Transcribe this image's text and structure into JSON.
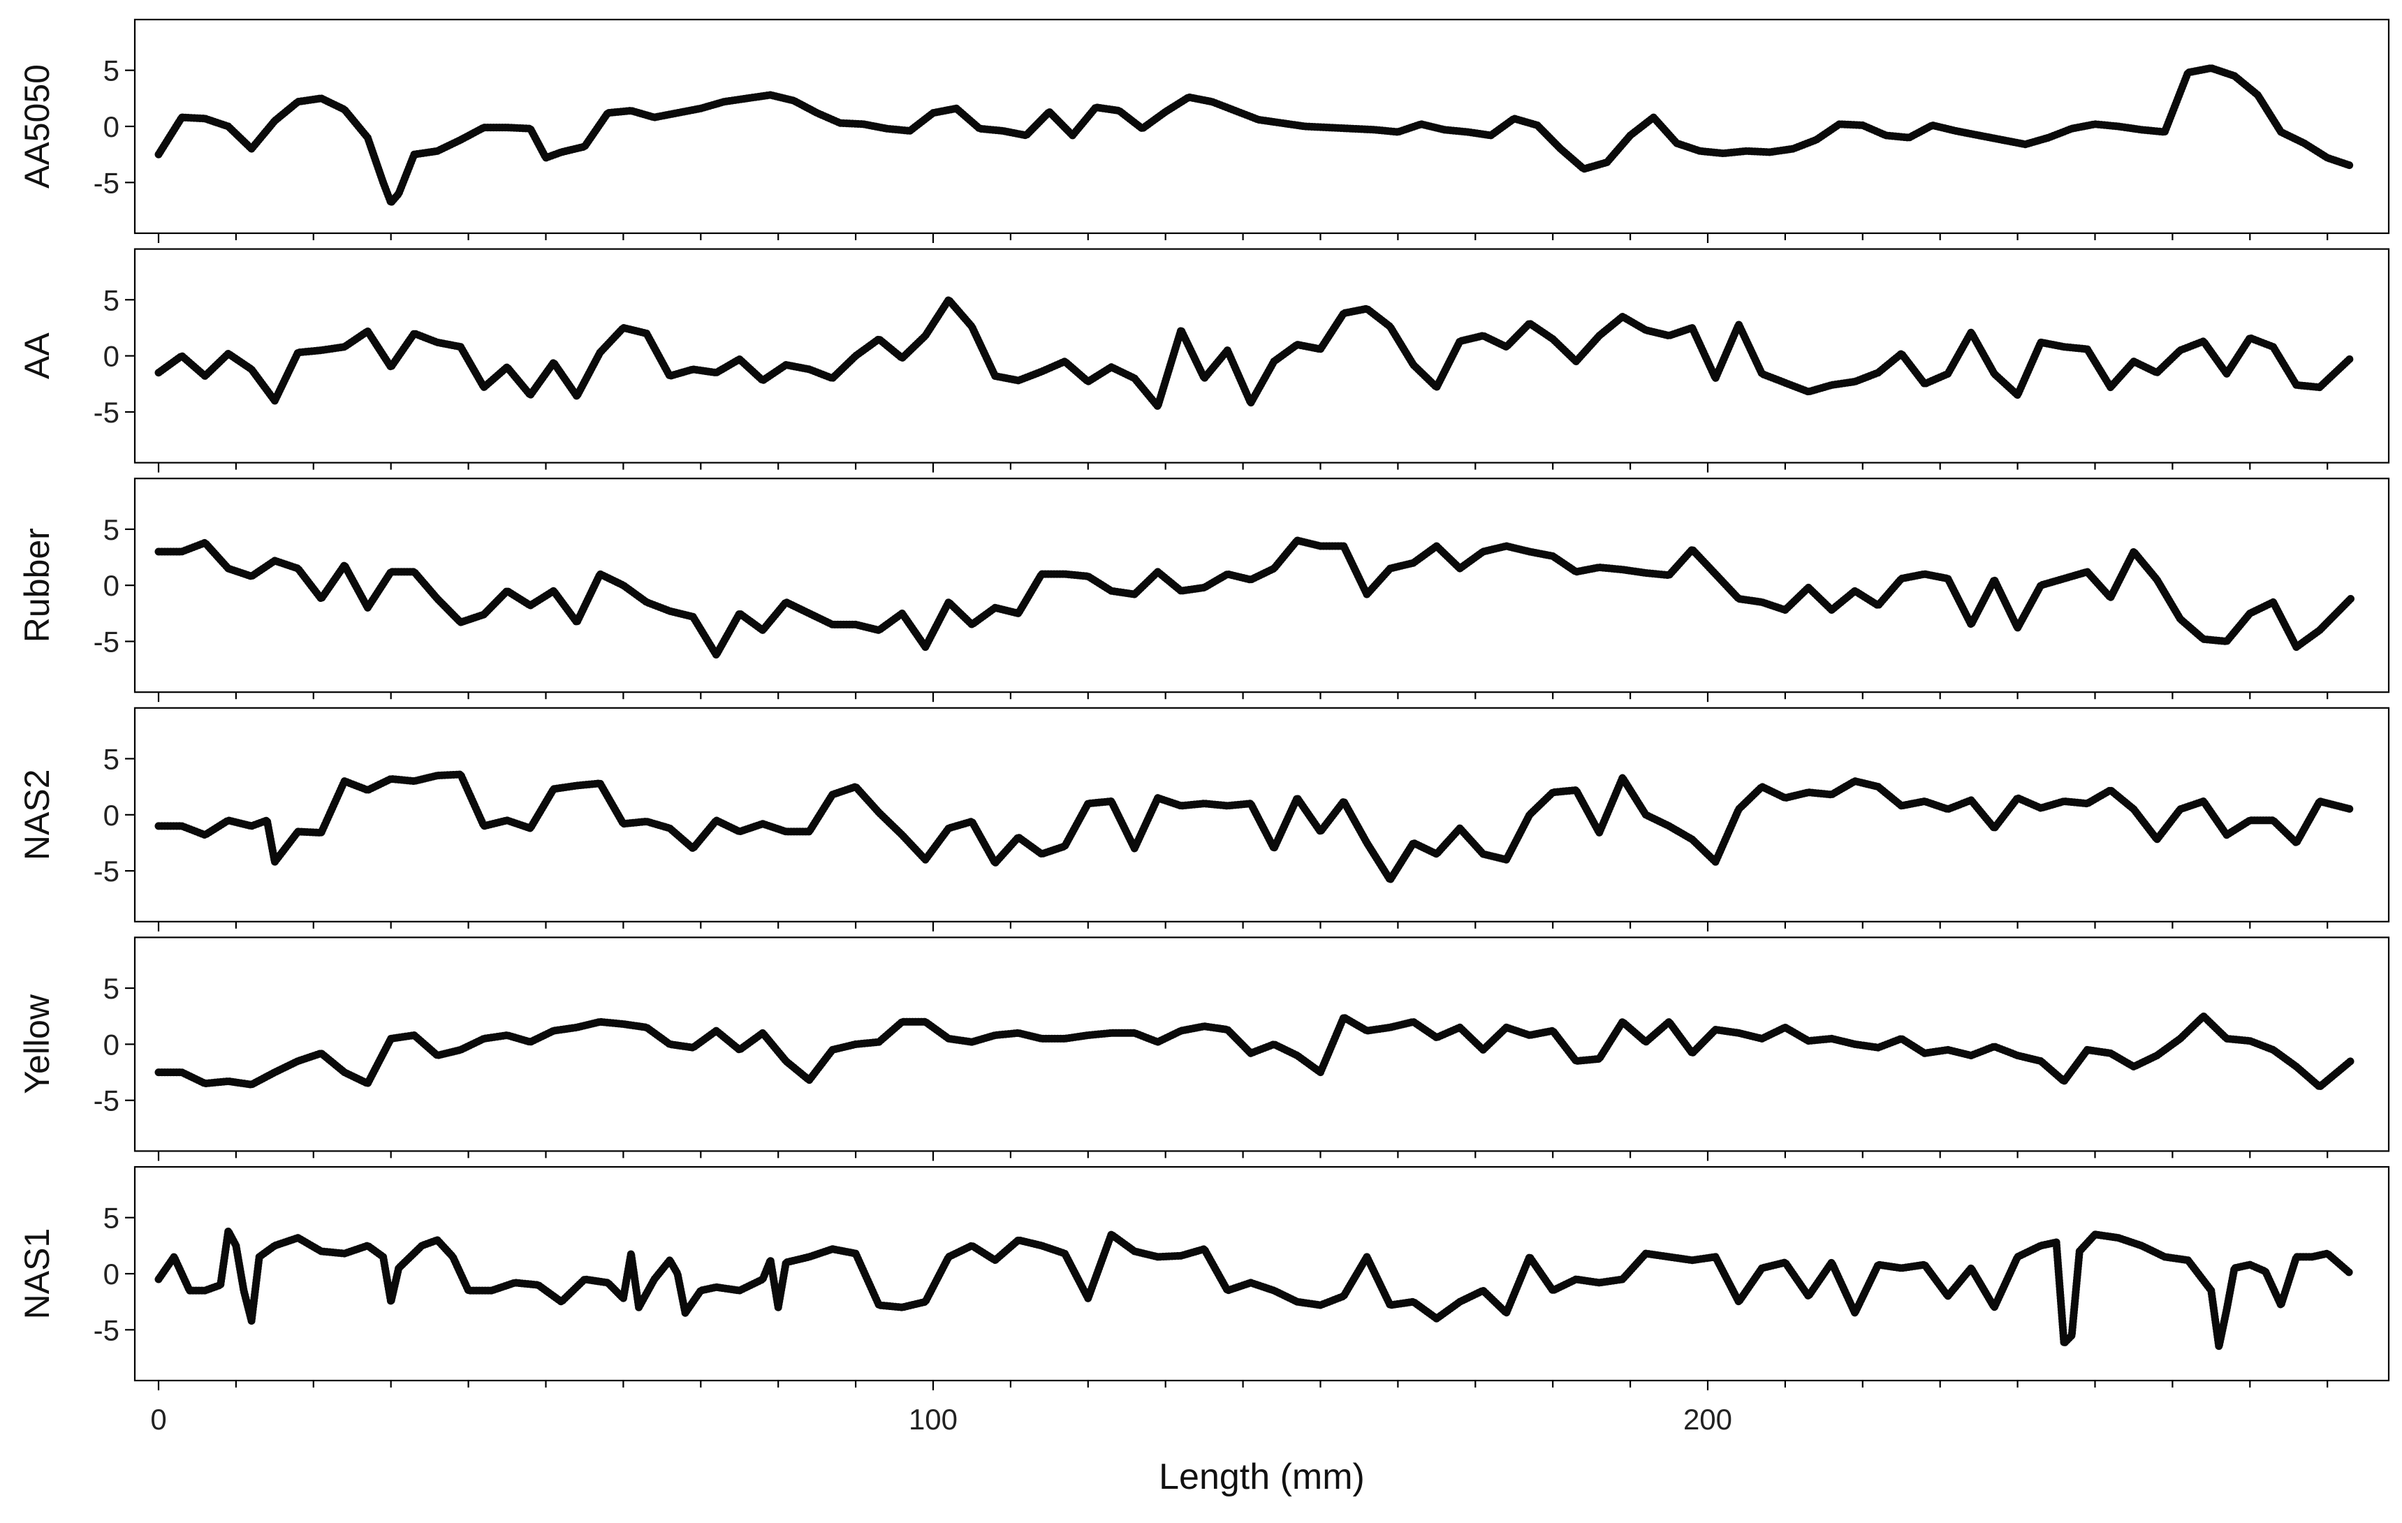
{
  "chart_data": {
    "type": "line",
    "xlabel": "Length (mm)",
    "xlim": [
      0,
      284
    ],
    "xticks_major": [
      0,
      100,
      200
    ],
    "xticks_minor_step": 10,
    "ylim": [
      -8,
      8
    ],
    "yticks": [
      -5,
      0,
      5
    ],
    "grid": false,
    "series": [
      {
        "name": "AA5050",
        "x": [
          0,
          3,
          6,
          9,
          12,
          15,
          18,
          21,
          24,
          27,
          29,
          30,
          31,
          33,
          36,
          39,
          42,
          45,
          48,
          50,
          52,
          55,
          58,
          61,
          64,
          67,
          70,
          73,
          76,
          79,
          82,
          85,
          88,
          91,
          94,
          97,
          100,
          103,
          106,
          109,
          112,
          115,
          118,
          121,
          124,
          127,
          130,
          133,
          136,
          139,
          142,
          145,
          148,
          151,
          154,
          157,
          160,
          163,
          166,
          169,
          172,
          175,
          178,
          181,
          184,
          187,
          190,
          193,
          196,
          199,
          202,
          205,
          208,
          211,
          214,
          217,
          220,
          223,
          226,
          229,
          232,
          235,
          238,
          241,
          244,
          247,
          250,
          253,
          256,
          259,
          262,
          265,
          268,
          271,
          274,
          277,
          280,
          283
        ],
        "y": [
          -2.5,
          0.8,
          0.7,
          0,
          -2,
          0.5,
          2.2,
          2.5,
          1.5,
          -1,
          -5,
          -6.8,
          -6,
          -2.5,
          -2.2,
          -1.2,
          -0.1,
          -0.1,
          -0.2,
          -2.8,
          -2.3,
          -1.8,
          1.2,
          1.4,
          0.8,
          1.2,
          1.6,
          2.2,
          2.5,
          2.8,
          2.3,
          1.2,
          0.3,
          0.2,
          -0.2,
          -0.4,
          1.2,
          1.6,
          -0.2,
          -0.4,
          -0.8,
          1.3,
          -0.8,
          1.7,
          1.4,
          -0.2,
          1.3,
          2.6,
          2.2,
          1.4,
          0.6,
          0.3,
          0.0,
          -0.1,
          -0.2,
          -0.3,
          -0.5,
          0.2,
          -0.3,
          -0.5,
          -0.8,
          0.7,
          0.1,
          -2,
          -3.8,
          -3.2,
          -0.8,
          0.8,
          -1.5,
          -2.2,
          -2.4,
          -2.2,
          -2.3,
          -2.0,
          -1.2,
          0.2,
          0.1,
          -0.8,
          -1,
          0.1,
          -0.4,
          -0.8,
          -1.2,
          -1.6,
          -1,
          -0.2,
          0.2,
          0,
          -0.3,
          -0.5,
          4.8,
          5.2,
          4.5,
          2.8,
          -0.5,
          -1.5,
          -2.8,
          -3.5
        ]
      },
      {
        "name": "AA",
        "x": [
          0,
          3,
          6,
          9,
          12,
          15,
          18,
          21,
          24,
          27,
          30,
          33,
          36,
          39,
          42,
          45,
          48,
          51,
          54,
          57,
          60,
          63,
          66,
          69,
          72,
          75,
          78,
          81,
          84,
          87,
          90,
          93,
          96,
          99,
          102,
          105,
          108,
          111,
          114,
          117,
          120,
          123,
          126,
          129,
          132,
          135,
          138,
          141,
          144,
          147,
          150,
          153,
          156,
          159,
          162,
          165,
          168,
          171,
          174,
          177,
          180,
          183,
          186,
          189,
          192,
          195,
          198,
          201,
          204,
          207,
          210,
          213,
          216,
          219,
          222,
          225,
          228,
          231,
          234,
          237,
          240,
          243,
          246,
          249,
          252,
          255,
          258,
          261,
          264,
          267,
          270,
          273,
          276,
          279,
          283
        ],
        "y": [
          -1.5,
          0,
          -1.8,
          0.2,
          -1.2,
          -4,
          0.3,
          0.5,
          0.8,
          2.2,
          -1,
          2,
          1.2,
          0.8,
          -2.8,
          -1,
          -3.5,
          -0.6,
          -3.6,
          0.3,
          2.5,
          2.0,
          -1.8,
          -1.2,
          -1.5,
          -0.3,
          -2.2,
          -0.8,
          -1.2,
          -2.0,
          0.0,
          1.5,
          -0.2,
          1.8,
          5.0,
          2.6,
          -1.8,
          -2.2,
          -1.4,
          -0.5,
          -2.3,
          -1,
          -2,
          -4.5,
          2.3,
          -2,
          0.5,
          -4.2,
          -0.5,
          1,
          0.6,
          3.8,
          4.2,
          2.6,
          -0.8,
          -2.8,
          1.3,
          1.8,
          0.8,
          2.9,
          1.5,
          -0.5,
          1.8,
          3.5,
          2.3,
          1.8,
          2.5,
          -2,
          2.8,
          -1.6,
          -2.4,
          -3.2,
          -2.6,
          -2.3,
          -1.5,
          0.2,
          -2.5,
          -1.6,
          2.1,
          -1.6,
          -3.5,
          1.2,
          0.8,
          0.6,
          -2.8,
          -0.5,
          -1.5,
          0.5,
          1.3,
          -1.6,
          1.6,
          0.8,
          -2.6,
          -2.8,
          -0.2
        ]
      },
      {
        "name": "Rubber",
        "x": [
          0,
          3,
          6,
          9,
          12,
          15,
          18,
          21,
          24,
          27,
          30,
          33,
          36,
          39,
          42,
          45,
          48,
          51,
          54,
          57,
          60,
          63,
          66,
          69,
          72,
          75,
          78,
          81,
          84,
          87,
          90,
          93,
          96,
          99,
          102,
          105,
          108,
          111,
          114,
          117,
          120,
          123,
          126,
          129,
          132,
          135,
          138,
          141,
          144,
          147,
          150,
          153,
          156,
          159,
          162,
          165,
          168,
          171,
          174,
          177,
          180,
          183,
          186,
          189,
          192,
          195,
          198,
          201,
          204,
          207,
          210,
          213,
          216,
          219,
          222,
          225,
          228,
          231,
          234,
          237,
          240,
          243,
          246,
          249,
          252,
          255,
          258,
          261,
          264,
          267,
          270,
          273,
          276,
          279,
          283
        ],
        "y": [
          3,
          3,
          3.8,
          1.5,
          0.8,
          2.2,
          1.5,
          -1.2,
          1.8,
          -2,
          1.2,
          1.2,
          -1.2,
          -3.3,
          -2.6,
          -0.5,
          -1.8,
          -0.5,
          -3.3,
          1.0,
          0.0,
          -1.5,
          -2.3,
          -2.8,
          -6.2,
          -2.5,
          -4,
          -1.5,
          -2.5,
          -3.5,
          -3.5,
          -4.0,
          -2.5,
          -5.5,
          -1.5,
          -3.5,
          -2.0,
          -2.5,
          1.0,
          1.0,
          0.8,
          -0.5,
          -0.8,
          1.2,
          -0.5,
          -0.2,
          1.0,
          0.5,
          1.5,
          4,
          3.5,
          3.5,
          -0.8,
          1.5,
          2.0,
          3.5,
          1.5,
          3.0,
          3.5,
          3.0,
          2.6,
          1.2,
          1.6,
          1.4,
          1.1,
          0.9,
          3.2,
          1.0,
          -1.2,
          -1.5,
          -2.2,
          -0.2,
          -2.2,
          -0.5,
          -1.8,
          0.6,
          1.0,
          0.6,
          -3.5,
          0.5,
          -3.8,
          0,
          0.6,
          1.2,
          -1.1,
          3.0,
          0.5,
          -3,
          -4.8,
          -5.0,
          -2.5,
          -1.5,
          -5.5,
          -4.0,
          -1.2
        ]
      },
      {
        "name": "NAS2",
        "x": [
          0,
          3,
          6,
          9,
          12,
          14,
          15,
          18,
          21,
          24,
          27,
          30,
          33,
          36,
          39,
          42,
          45,
          48,
          51,
          54,
          57,
          60,
          63,
          66,
          69,
          72,
          75,
          78,
          81,
          84,
          87,
          90,
          93,
          96,
          99,
          102,
          105,
          108,
          111,
          114,
          117,
          120,
          123,
          126,
          129,
          132,
          135,
          138,
          141,
          144,
          147,
          150,
          153,
          156,
          159,
          162,
          165,
          168,
          171,
          174,
          177,
          180,
          183,
          186,
          189,
          192,
          195,
          198,
          201,
          204,
          207,
          210,
          213,
          216,
          219,
          222,
          225,
          228,
          231,
          234,
          237,
          240,
          243,
          246,
          249,
          252,
          255,
          258,
          261,
          264,
          267,
          270,
          273,
          276,
          279,
          283
        ],
        "y": [
          -1,
          -1,
          -1.8,
          -0.5,
          -1,
          -0.5,
          -4.2,
          -1.5,
          -1.6,
          3.0,
          2.2,
          3.2,
          3.0,
          3.5,
          3.6,
          -1,
          -0.5,
          -1.2,
          2.3,
          2.6,
          2.8,
          -0.8,
          -0.6,
          -1.2,
          -3,
          -0.5,
          -1.5,
          -0.8,
          -1.5,
          -1.5,
          1.8,
          2.5,
          0.2,
          -1.8,
          -4,
          -1.2,
          -0.6,
          -4.3,
          -2.0,
          -3.5,
          -2.8,
          1.0,
          1.2,
          -3,
          1.5,
          0.8,
          1.0,
          0.8,
          1.0,
          -3,
          1.5,
          -1.5,
          1.2,
          -2.5,
          -5.8,
          -2.5,
          -3.5,
          -1.2,
          -3.5,
          -4,
          0,
          2.0,
          2.2,
          -1.6,
          3.3,
          0,
          -1,
          -2.2,
          -4.2,
          0.5,
          2.5,
          1.5,
          2.0,
          1.8,
          3.0,
          2.5,
          0.8,
          1.2,
          0.5,
          1.3,
          -1.2,
          1.5,
          0.6,
          1.2,
          1.0,
          2.2,
          0.5,
          -2.2,
          0.5,
          1.2,
          -1.8,
          -0.5,
          -0.5,
          -2.5,
          1.2,
          0.5
        ]
      },
      {
        "name": "Yellow",
        "x": [
          0,
          3,
          6,
          9,
          12,
          15,
          18,
          21,
          24,
          27,
          30,
          33,
          36,
          39,
          42,
          45,
          48,
          51,
          54,
          57,
          60,
          63,
          66,
          69,
          72,
          75,
          78,
          81,
          84,
          87,
          90,
          93,
          96,
          99,
          102,
          105,
          108,
          111,
          114,
          117,
          120,
          123,
          126,
          129,
          132,
          135,
          138,
          141,
          144,
          147,
          150,
          153,
          156,
          159,
          162,
          165,
          168,
          171,
          174,
          177,
          180,
          183,
          186,
          189,
          192,
          195,
          198,
          201,
          204,
          207,
          210,
          213,
          216,
          219,
          222,
          225,
          228,
          231,
          234,
          237,
          240,
          243,
          246,
          249,
          252,
          255,
          258,
          261,
          264,
          267,
          270,
          273,
          276,
          279,
          283
        ],
        "y": [
          -2.5,
          -2.5,
          -3.5,
          -3.3,
          -3.6,
          -2.5,
          -1.5,
          -0.8,
          -2.5,
          -3.5,
          0.5,
          0.8,
          -1.0,
          -0.5,
          0.5,
          0.8,
          0.2,
          1.2,
          1.5,
          2.0,
          1.8,
          1.5,
          0.0,
          -0.3,
          1.2,
          -0.5,
          1.0,
          -1.5,
          -3.2,
          -0.5,
          0,
          0.2,
          2.0,
          2.0,
          0.5,
          0.2,
          0.8,
          1.0,
          0.5,
          0.5,
          0.8,
          1.0,
          1.0,
          0.2,
          1.2,
          1.6,
          1.3,
          -0.8,
          0,
          -1,
          -2.5,
          2.4,
          1.2,
          1.5,
          2.0,
          0.6,
          1.5,
          -0.5,
          1.5,
          0.8,
          1.2,
          -1.5,
          -1.3,
          2.0,
          0.2,
          2.0,
          -0.8,
          1.3,
          1.0,
          0.5,
          1.5,
          0.3,
          0.5,
          0.0,
          -0.3,
          0.5,
          -0.8,
          -0.5,
          -1.0,
          -0.2,
          -1.0,
          -1.5,
          -3.3,
          -0.5,
          -0.8,
          -2.0,
          -1.0,
          0.5,
          2.5,
          0.5,
          0.3,
          -0.5,
          -2.0,
          -3.8,
          -1.5
        ]
      },
      {
        "name": "NAS1",
        "x": [
          0,
          2,
          4,
          6,
          8,
          9,
          10,
          11,
          12,
          13,
          15,
          18,
          21,
          24,
          27,
          29,
          30,
          31,
          34,
          36,
          38,
          40,
          43,
          46,
          49,
          52,
          55,
          58,
          60,
          61,
          62,
          64,
          66,
          67,
          68,
          70,
          72,
          75,
          78,
          79,
          80,
          81,
          84,
          87,
          90,
          93,
          96,
          99,
          102,
          105,
          108,
          111,
          114,
          117,
          120,
          123,
          126,
          129,
          132,
          135,
          138,
          141,
          144,
          147,
          150,
          153,
          156,
          159,
          162,
          165,
          168,
          171,
          174,
          177,
          180,
          183,
          186,
          189,
          192,
          195,
          198,
          201,
          204,
          207,
          210,
          213,
          216,
          219,
          222,
          225,
          228,
          231,
          234,
          237,
          240,
          243,
          245,
          246,
          247,
          248,
          250,
          253,
          256,
          259,
          262,
          265,
          266,
          267,
          268,
          270,
          272,
          274,
          276,
          278,
          280,
          283
        ],
        "y": [
          -0.5,
          1.5,
          -1.5,
          -1.5,
          -1,
          3.8,
          2.5,
          -1.5,
          -4.2,
          1.5,
          2.5,
          3.2,
          2.0,
          1.8,
          2.5,
          1.5,
          -2.5,
          0.5,
          2.5,
          3.0,
          1.5,
          -1.5,
          -1.5,
          -0.8,
          -1.0,
          -2.5,
          -0.5,
          -0.8,
          -2.2,
          1.8,
          -3.0,
          -0.5,
          1.2,
          0,
          -3.5,
          -1.5,
          -1.2,
          -1.5,
          -0.5,
          1.2,
          -3,
          1,
          1.5,
          2.2,
          1.8,
          -2.8,
          -3.0,
          -2.5,
          1.5,
          2.5,
          1.2,
          3.0,
          2.5,
          1.8,
          -2.2,
          3.5,
          2.0,
          1.5,
          1.6,
          2.2,
          -1.5,
          -0.8,
          -1.5,
          -2.5,
          -2.8,
          -2.0,
          1.5,
          -2.8,
          -2.5,
          -4.0,
          -2.5,
          -1.5,
          -3.5,
          1.5,
          -1.5,
          -0.5,
          -0.8,
          -0.5,
          1.8,
          1.5,
          1.2,
          1.5,
          -2.5,
          0.5,
          1.0,
          -2.0,
          1.0,
          -3.5,
          0.8,
          0.5,
          0.8,
          -2.0,
          0.5,
          -3.0,
          1.5,
          2.5,
          2.8,
          -6.2,
          -5.5,
          2.0,
          3.5,
          3.2,
          2.5,
          1.5,
          1.2,
          -1.5,
          -6.5,
          -3.2,
          0.5,
          0.8,
          0.2,
          -2.8,
          1.5,
          1.5,
          1.8,
          0.0
        ]
      }
    ]
  }
}
